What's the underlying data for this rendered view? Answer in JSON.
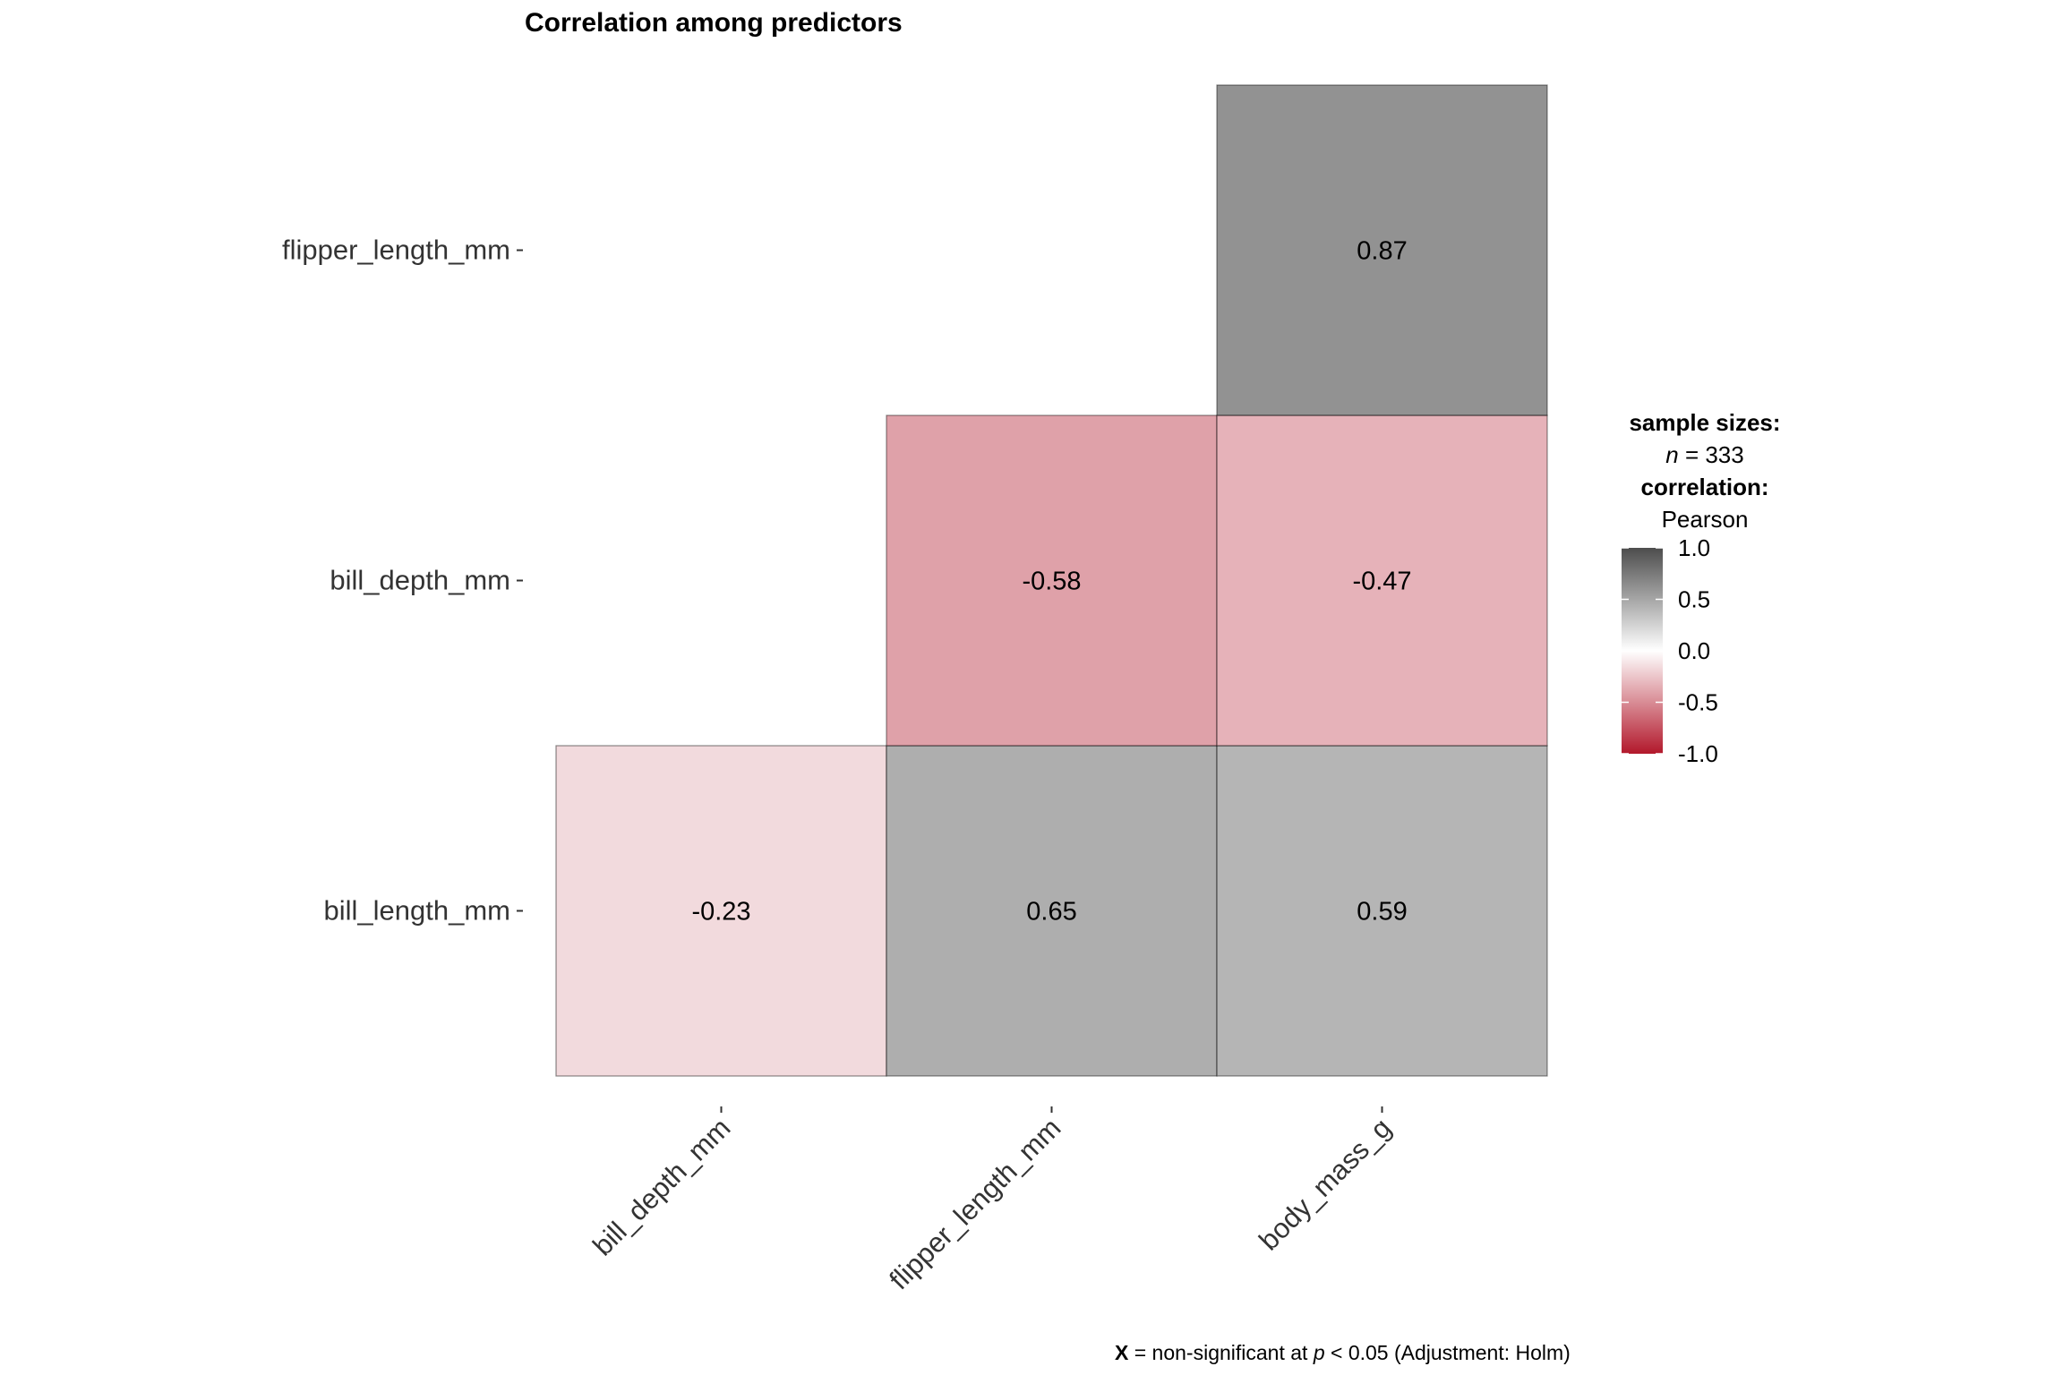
{
  "chart_data": {
    "type": "heatmap",
    "title": "Correlation among predictors",
    "x_categories": [
      "bill_depth_mm",
      "flipper_length_mm",
      "body_mass_g"
    ],
    "y_categories": [
      "bill_length_mm",
      "bill_depth_mm",
      "flipper_length_mm"
    ],
    "cells": [
      {
        "x": "bill_depth_mm",
        "y": "bill_length_mm",
        "value": -0.23,
        "label": "-0.23"
      },
      {
        "x": "flipper_length_mm",
        "y": "bill_length_mm",
        "value": 0.65,
        "label": "0.65"
      },
      {
        "x": "body_mass_g",
        "y": "bill_length_mm",
        "value": 0.59,
        "label": "0.59"
      },
      {
        "x": "flipper_length_mm",
        "y": "bill_depth_mm",
        "value": -0.58,
        "label": "-0.58"
      },
      {
        "x": "body_mass_g",
        "y": "bill_depth_mm",
        "value": -0.47,
        "label": "-0.47"
      },
      {
        "x": "body_mass_g",
        "y": "flipper_length_mm",
        "value": 0.87,
        "label": "0.87"
      }
    ],
    "legend": {
      "sample_sizes_title": "sample sizes:",
      "n_symbol": "n",
      "n_rest": " = 333",
      "correlation_title": "correlation:",
      "method": "Pearson",
      "ticks": [
        {
          "value": 1.0,
          "label": "1.0"
        },
        {
          "value": 0.5,
          "label": "0.5"
        },
        {
          "value": 0.0,
          "label": "0.0"
        },
        {
          "value": -0.5,
          "label": "-0.5"
        },
        {
          "value": -1.0,
          "label": "-1.0"
        }
      ],
      "range": [
        -1,
        1
      ],
      "colors": {
        "low": "#b2182b",
        "mid": "#ffffff",
        "high": "#4d4d4d"
      },
      "placement": "right"
    },
    "caption": {
      "x_mark": "X",
      "text_before_p": " = non-significant at ",
      "p_symbol": "p",
      "text_after_p": " < 0.05 (Adjustment: Holm)"
    },
    "cell_alpha": 0.7
  }
}
